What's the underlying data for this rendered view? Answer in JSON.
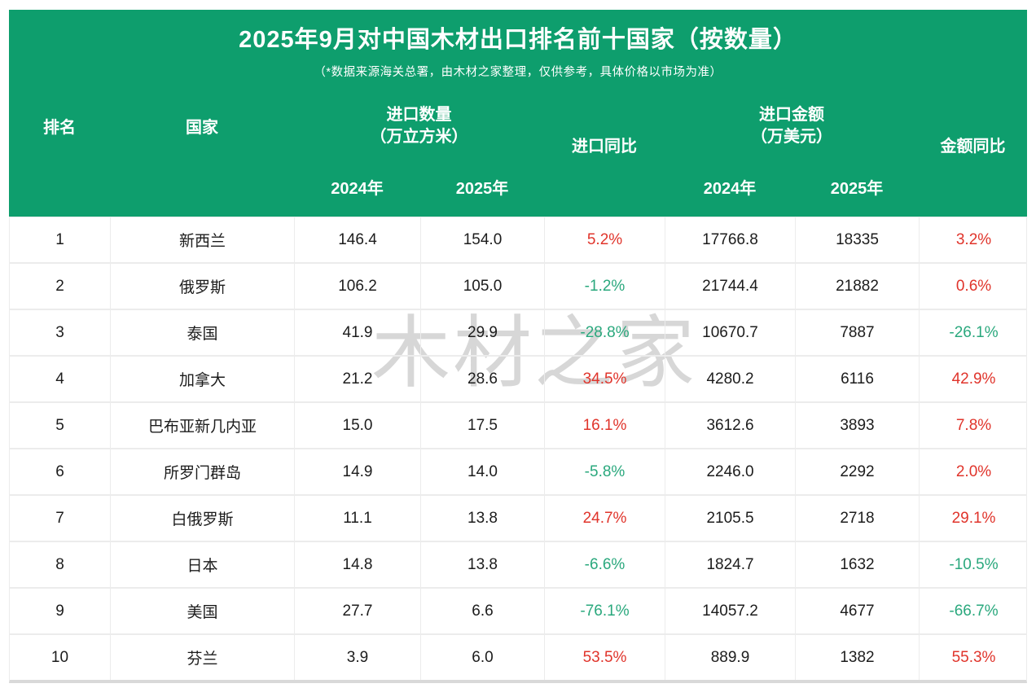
{
  "chart_data": {
    "type": "table",
    "title": "2025年9月对中国木材出口排名前十国家（按数量）",
    "subtitle": "（*数据来源海关总署，由木材之家整理，仅供参考，具体价格以市场为准）",
    "header": {
      "rank": "排名",
      "country": "国家",
      "qty_group": [
        "进口数量",
        "（万立方米）"
      ],
      "import_yoy": "进口同比",
      "amt_group": [
        "进口金额",
        "（万美元）"
      ],
      "amount_yoy": "金额同比",
      "qty_year_2024": "2024年",
      "qty_year_2025": "2025年",
      "amt_year_2024": "2024年",
      "amt_year_2025": "2025年"
    },
    "rows": [
      {
        "rank": "1",
        "country": "新西兰",
        "qty_2024": "146.4",
        "qty_2025": "154.0",
        "qty_yoy": "5.2%",
        "amt_2024": "17766.8",
        "amt_2025": "18335",
        "amt_yoy": "3.2%"
      },
      {
        "rank": "2",
        "country": "俄罗斯",
        "qty_2024": "106.2",
        "qty_2025": "105.0",
        "qty_yoy": "-1.2%",
        "amt_2024": "21744.4",
        "amt_2025": "21882",
        "amt_yoy": "0.6%"
      },
      {
        "rank": "3",
        "country": "泰国",
        "qty_2024": "41.9",
        "qty_2025": "29.9",
        "qty_yoy": "-28.8%",
        "amt_2024": "10670.7",
        "amt_2025": "7887",
        "amt_yoy": "-26.1%"
      },
      {
        "rank": "4",
        "country": "加拿大",
        "qty_2024": "21.2",
        "qty_2025": "28.6",
        "qty_yoy": "34.5%",
        "amt_2024": "4280.2",
        "amt_2025": "6116",
        "amt_yoy": "42.9%"
      },
      {
        "rank": "5",
        "country": "巴布亚新几内亚",
        "qty_2024": "15.0",
        "qty_2025": "17.5",
        "qty_yoy": "16.1%",
        "amt_2024": "3612.6",
        "amt_2025": "3893",
        "amt_yoy": "7.8%"
      },
      {
        "rank": "6",
        "country": "所罗门群岛",
        "qty_2024": "14.9",
        "qty_2025": "14.0",
        "qty_yoy": "-5.8%",
        "amt_2024": "2246.0",
        "amt_2025": "2292",
        "amt_yoy": "2.0%"
      },
      {
        "rank": "7",
        "country": "白俄罗斯",
        "qty_2024": "11.1",
        "qty_2025": "13.8",
        "qty_yoy": "24.7%",
        "amt_2024": "2105.5",
        "amt_2025": "2718",
        "amt_yoy": "29.1%"
      },
      {
        "rank": "8",
        "country": "日本",
        "qty_2024": "14.8",
        "qty_2025": "13.8",
        "qty_yoy": "-6.6%",
        "amt_2024": "1824.7",
        "amt_2025": "1632",
        "amt_yoy": "-10.5%"
      },
      {
        "rank": "9",
        "country": "美国",
        "qty_2024": "27.7",
        "qty_2025": "6.6",
        "qty_yoy": "-76.1%",
        "amt_2024": "14057.2",
        "amt_2025": "4677",
        "amt_yoy": "-66.7%"
      },
      {
        "rank": "10",
        "country": "芬兰",
        "qty_2024": "3.9",
        "qty_2025": "6.0",
        "qty_yoy": "53.5%",
        "amt_2024": "889.9",
        "amt_2025": "1382",
        "amt_yoy": "55.3%"
      }
    ]
  },
  "watermark": "木材之家",
  "colors": {
    "header_green": "#0e9e6d",
    "increase_red": "#e0342b",
    "decrease_green": "#2aa87d",
    "grid_line": "#ececec"
  }
}
